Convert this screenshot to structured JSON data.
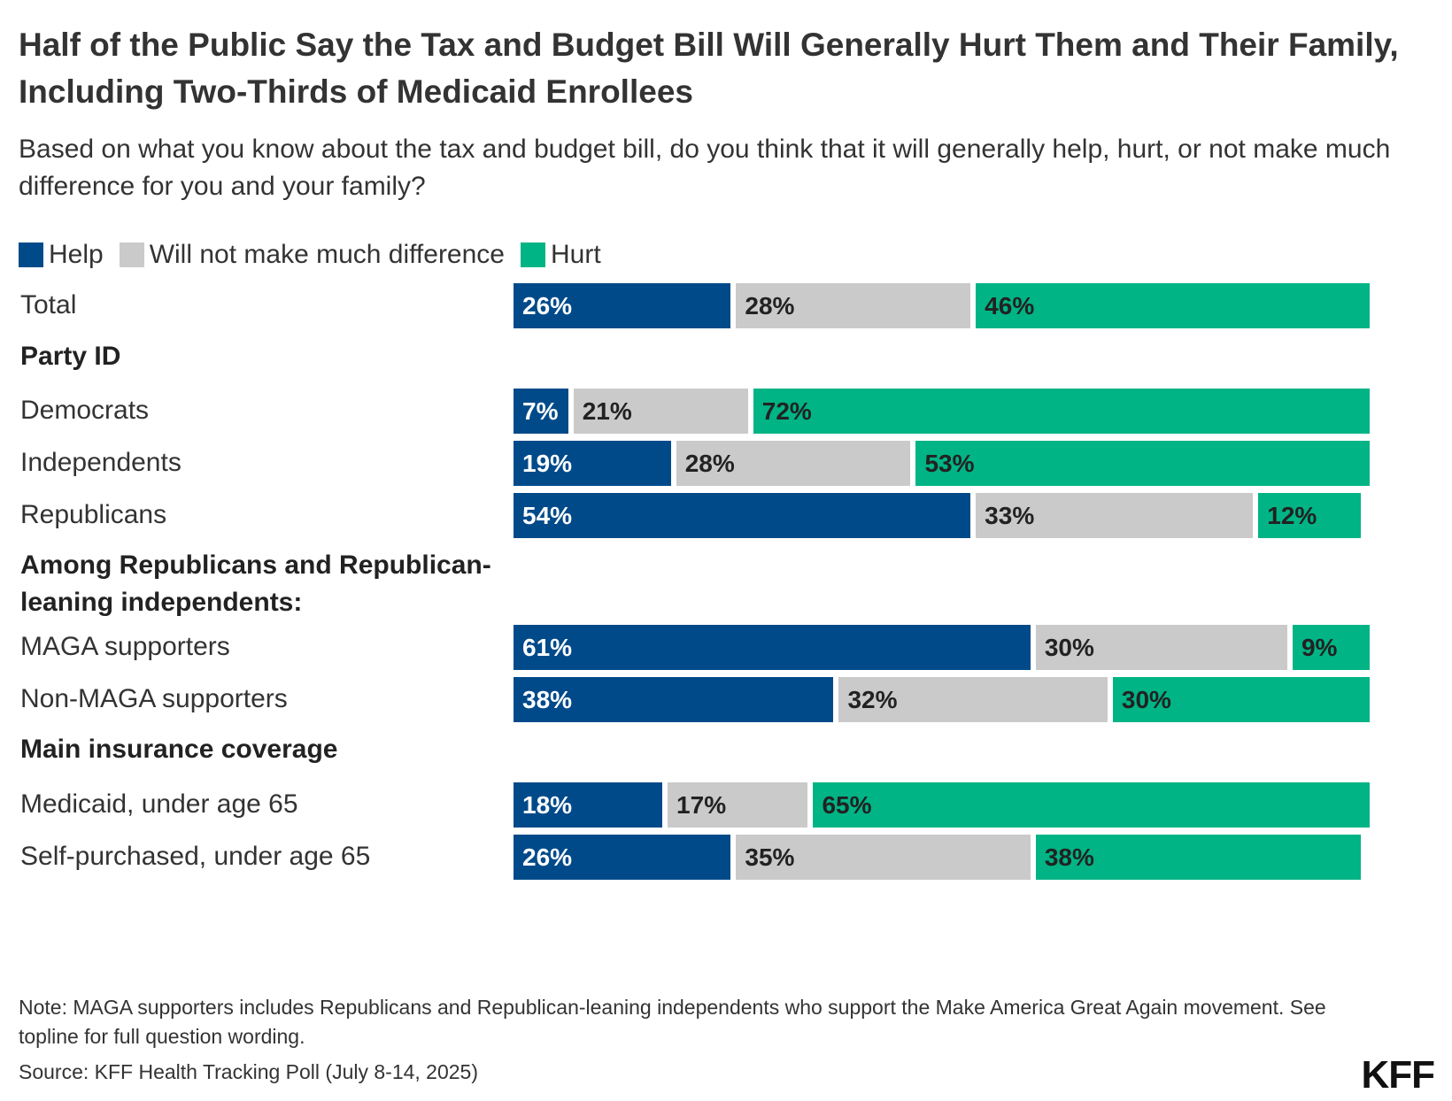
{
  "chart_data": {
    "type": "bar",
    "orientation": "horizontal",
    "stacked": true,
    "title": "Half of the Public Say the Tax and Budget Bill Will Generally Hurt Them and Their Family, Including Two-Thirds of Medicaid Enrollees",
    "subtitle": "Based on what you know about the tax and budget bill, do you think that it will generally help, hurt, or not make much difference for you and your family?",
    "legend_placement": "top-left",
    "series": [
      {
        "name": "Help",
        "color": "#004a8a",
        "text_color": "#ffffff"
      },
      {
        "name": "Will not make much difference",
        "color": "#cacaca",
        "text_color": "#222222"
      },
      {
        "name": "Hurt",
        "color": "#00b485",
        "text_color": "#222222"
      }
    ],
    "rows": [
      {
        "kind": "bar",
        "label": "Total",
        "values": [
          26,
          28,
          46
        ]
      },
      {
        "kind": "group",
        "label": "Party ID"
      },
      {
        "kind": "bar",
        "label": "Democrats",
        "values": [
          7,
          21,
          72
        ]
      },
      {
        "kind": "bar",
        "label": "Independents",
        "values": [
          19,
          28,
          53
        ]
      },
      {
        "kind": "bar",
        "label": "Republicans",
        "values": [
          54,
          33,
          12
        ]
      },
      {
        "kind": "group",
        "label": "Among Republicans and Republican-leaning independents:"
      },
      {
        "kind": "bar",
        "label": "MAGA supporters",
        "values": [
          61,
          30,
          9
        ]
      },
      {
        "kind": "bar",
        "label": "Non-MAGA supporters",
        "values": [
          38,
          32,
          30
        ]
      },
      {
        "kind": "group",
        "label": "Main insurance coverage"
      },
      {
        "kind": "bar",
        "label": "Medicaid, under age 65",
        "values": [
          18,
          17,
          65
        ]
      },
      {
        "kind": "bar",
        "label": "Self-purchased, under age 65",
        "values": [
          26,
          35,
          38
        ]
      }
    ],
    "value_suffix": "%",
    "xlim": [
      0,
      100
    ],
    "grid": false
  },
  "footer": {
    "note": "Note: MAGA supporters includes Republicans and Republican-leaning independents who support the Make America Great Again movement. See topline for full question wording.",
    "source": "Source: KFF Health Tracking Poll (July 8-14, 2025)",
    "logo": "KFF"
  }
}
